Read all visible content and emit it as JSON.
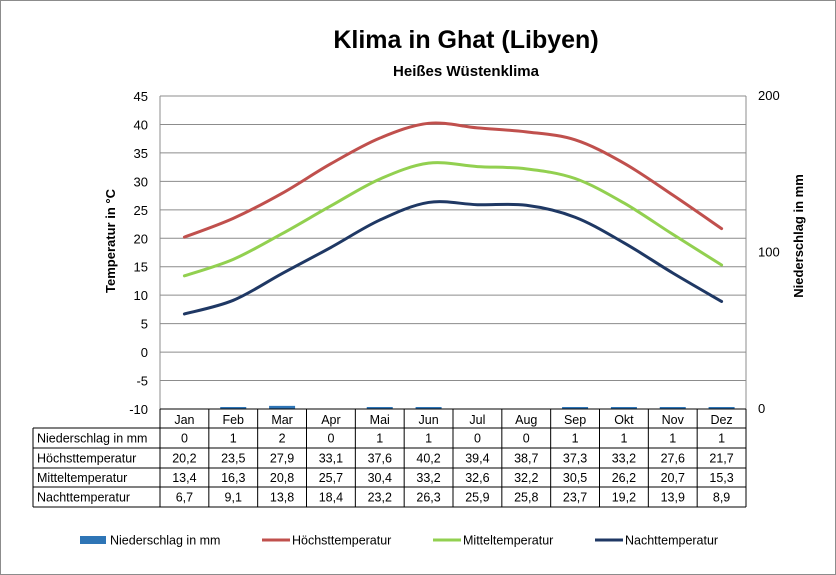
{
  "chart_data": {
    "type": "line",
    "title": "Klima in Ghat (Libyen)",
    "subtitle": "Heißes Wüstenklima",
    "ylabel_left": "Temperatur in °C",
    "ylabel_right": "Niederschlag in mm",
    "ylim_left": [
      -10,
      45
    ],
    "yticks_left": [
      "45",
      "40",
      "35",
      "30",
      "25",
      "20",
      "15",
      "10",
      "5",
      "0",
      "-5",
      "-10"
    ],
    "ylim_right": [
      0,
      200
    ],
    "yticks_right": [
      "200",
      "100",
      "0"
    ],
    "categories": [
      "Jan",
      "Feb",
      "Mar",
      "Apr",
      "Mai",
      "Jun",
      "Jul",
      "Aug",
      "Sep",
      "Okt",
      "Nov",
      "Dez"
    ],
    "grid": true,
    "legend_position": "bottom",
    "series": [
      {
        "name": "Niederschlag in mm",
        "type": "bar",
        "axis": "right",
        "color": "#2e75b6",
        "values": [
          0,
          1,
          2,
          0,
          1,
          1,
          0,
          0,
          1,
          1,
          1,
          1
        ],
        "labels": [
          "0",
          "1",
          "2",
          "0",
          "1",
          "1",
          "0",
          "0",
          "1",
          "1",
          "1",
          "1"
        ]
      },
      {
        "name": "Höchsttemperatur",
        "type": "line",
        "axis": "left",
        "color": "#c0504d",
        "values": [
          20.2,
          23.5,
          27.9,
          33.1,
          37.6,
          40.2,
          39.4,
          38.7,
          37.3,
          33.2,
          27.6,
          21.7
        ],
        "labels": [
          "20,2",
          "23,5",
          "27,9",
          "33,1",
          "37,6",
          "40,2",
          "39,4",
          "38,7",
          "37,3",
          "33,2",
          "27,6",
          "21,7"
        ]
      },
      {
        "name": "Mitteltemperatur",
        "type": "line",
        "axis": "left",
        "color": "#92d050",
        "values": [
          13.4,
          16.3,
          20.8,
          25.7,
          30.4,
          33.2,
          32.6,
          32.2,
          30.5,
          26.2,
          20.7,
          15.3
        ],
        "labels": [
          "13,4",
          "16,3",
          "20,8",
          "25,7",
          "30,4",
          "33,2",
          "32,6",
          "32,2",
          "30,5",
          "26,2",
          "20,7",
          "15,3"
        ]
      },
      {
        "name": "Nachttemperatur",
        "type": "line",
        "axis": "left",
        "color": "#1f3864",
        "values": [
          6.7,
          9.1,
          13.8,
          18.4,
          23.2,
          26.3,
          25.9,
          25.8,
          23.7,
          19.2,
          13.9,
          8.9
        ],
        "labels": [
          "6,7",
          "9,1",
          "13,8",
          "18,4",
          "23,2",
          "26,3",
          "25,9",
          "25,8",
          "23,7",
          "19,2",
          "13,9",
          "8,9"
        ]
      }
    ]
  }
}
